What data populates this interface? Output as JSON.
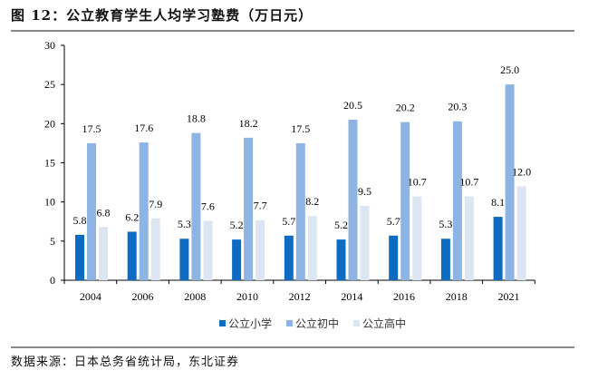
{
  "title": "图 12：公立教育学生人均学习塾费（万日元）",
  "source": "数据来源：日本总务省统计局，东北证券",
  "chart_data": {
    "type": "bar",
    "title": "图 12：公立教育学生人均学习塾费（万日元）",
    "categories": [
      "2004",
      "2006",
      "2008",
      "2010",
      "2012",
      "2014",
      "2016",
      "2018",
      "2021"
    ],
    "series": [
      {
        "name": "公立小学",
        "color": "#0d6cc2",
        "values": [
          5.8,
          6.2,
          5.3,
          5.2,
          5.7,
          5.2,
          5.7,
          5.3,
          8.1
        ]
      },
      {
        "name": "公立初中",
        "color": "#8db4e2",
        "values": [
          17.5,
          17.6,
          18.8,
          18.2,
          17.5,
          20.5,
          20.2,
          20.3,
          25.0
        ]
      },
      {
        "name": "公立高中",
        "color": "#dce6f2",
        "values": [
          6.8,
          7.9,
          7.6,
          7.7,
          8.2,
          9.5,
          10.7,
          10.7,
          12.0
        ]
      }
    ],
    "yticks": [
      "0",
      "5",
      "10",
      "15",
      "20",
      "25",
      "30"
    ],
    "ylim": [
      0,
      30
    ],
    "grid": false,
    "legend": "bottom",
    "data_labels": true
  }
}
